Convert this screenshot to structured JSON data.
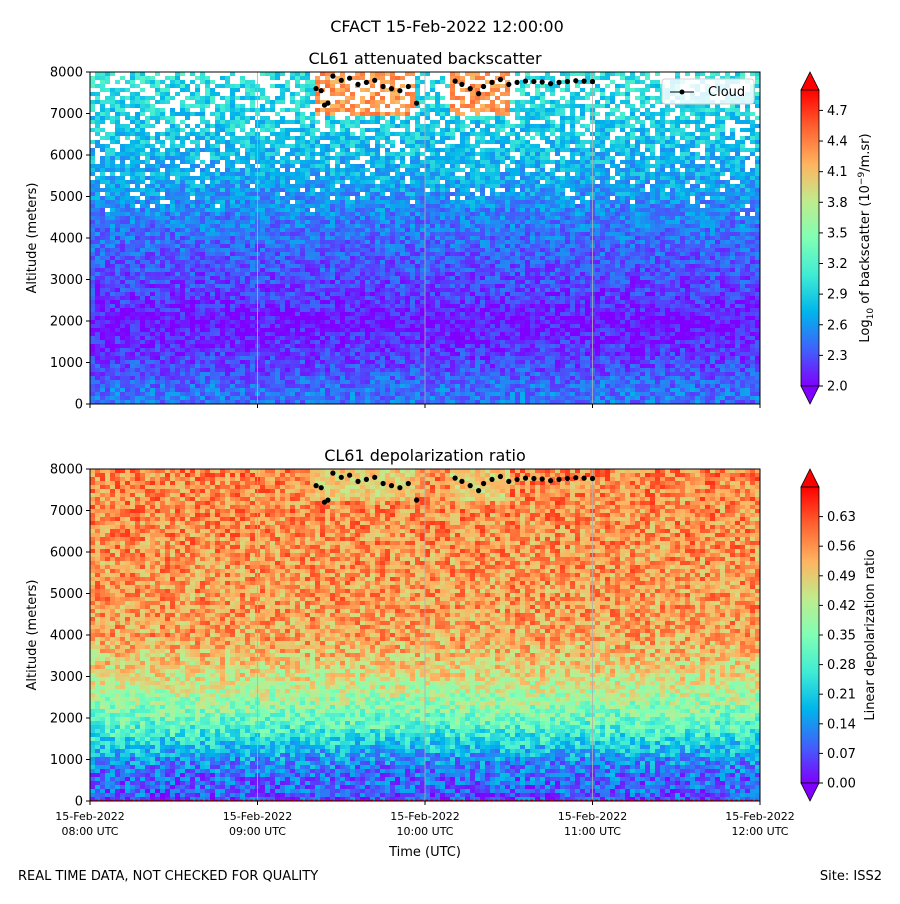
{
  "figure": {
    "suptitle": "CFACT 15-Feb-2022 12:00:00",
    "footer_left": "REAL TIME DATA, NOT CHECKED FOR QUALITY",
    "footer_right": "Site: ISS2"
  },
  "colors": {
    "rainbow": [
      "#8000ff",
      "#4062fa",
      "#00b5eb",
      "#40ecd4",
      "#80ffb4",
      "#c0eb8d",
      "#ffb360",
      "#ff6130",
      "#ff0000"
    ],
    "cloud": "#000000",
    "grid": "#b0b0b0",
    "ground_line": "#ff0000"
  },
  "chart_data": [
    {
      "type": "heatmap",
      "title": "CL61 attenuated backscatter",
      "xlabel": "",
      "ylabel": "Altitude (meters)",
      "ylim": [
        0,
        8000
      ],
      "yticks": [
        "0",
        "1000",
        "2000",
        "3000",
        "4000",
        "5000",
        "6000",
        "7000",
        "8000"
      ],
      "xlim_hours_utc": [
        8,
        12
      ],
      "grid": "vertical only",
      "legend": {
        "position": "top-right",
        "label": "Cloud",
        "marker": "black dot"
      },
      "colorbar": {
        "label_prefix": "Log",
        "label_sub": "10",
        "label_mid": " of backscatter (10",
        "label_sup": "−9",
        "label_suffix": "/m.sr)",
        "range": [
          2.0,
          4.9
        ],
        "ticks": [
          "2.0",
          "2.3",
          "2.6",
          "2.9",
          "3.2",
          "3.5",
          "3.8",
          "4.1",
          "4.4",
          "4.7"
        ],
        "extend": "both"
      },
      "field_profile": [
        {
          "alt": 0,
          "value": 2.45
        },
        {
          "alt": 300,
          "value": 2.45
        },
        {
          "alt": 800,
          "value": 2.3
        },
        {
          "alt": 1500,
          "value": 2.15
        },
        {
          "alt": 2000,
          "value": 2.05
        },
        {
          "alt": 2500,
          "value": 2.2
        },
        {
          "alt": 3500,
          "value": 2.35
        },
        {
          "alt": 4500,
          "value": 2.5
        },
        {
          "alt": 5500,
          "value": 2.7
        },
        {
          "alt": 6500,
          "value": 2.85
        },
        {
          "alt": 8000,
          "value": 3.0
        }
      ],
      "cloud_layer": {
        "hours": [
          [
            9.35,
            9.95
          ],
          [
            10.15,
            10.5
          ]
        ],
        "alt_range": [
          6900,
          8000
        ],
        "value": 4.3
      }
    },
    {
      "type": "heatmap",
      "title": "CL61 depolarization ratio",
      "xlabel": "Time (UTC)",
      "ylabel": "Altitude (meters)",
      "ylim": [
        0,
        8000
      ],
      "yticks": [
        "0",
        "1000",
        "2000",
        "3000",
        "4000",
        "5000",
        "6000",
        "7000",
        "8000"
      ],
      "xlim_hours_utc": [
        8,
        12
      ],
      "xticks": [
        {
          "hour": 8,
          "line1": "15-Feb-2022",
          "line2": "08:00 UTC"
        },
        {
          "hour": 9,
          "line1": "15-Feb-2022",
          "line2": "09:00 UTC"
        },
        {
          "hour": 10,
          "line1": "15-Feb-2022",
          "line2": "10:00 UTC"
        },
        {
          "hour": 11,
          "line1": "15-Feb-2022",
          "line2": "11:00 UTC"
        },
        {
          "hour": 12,
          "line1": "15-Feb-2022",
          "line2": "12:00 UTC"
        }
      ],
      "grid": "vertical only",
      "colorbar": {
        "label": "Linear depolarization ratio",
        "range": [
          0.0,
          0.7
        ],
        "ticks": [
          "0.00",
          "0.07",
          "0.14",
          "0.21",
          "0.28",
          "0.35",
          "0.42",
          "0.49",
          "0.56",
          "0.63"
        ],
        "extend": "both"
      },
      "field_profile": [
        {
          "alt": 0,
          "value": 0.07
        },
        {
          "alt": 200,
          "value": 0.09
        },
        {
          "alt": 600,
          "value": 0.1
        },
        {
          "alt": 1000,
          "value": 0.14
        },
        {
          "alt": 1400,
          "value": 0.22
        },
        {
          "alt": 1800,
          "value": 0.3
        },
        {
          "alt": 2200,
          "value": 0.36
        },
        {
          "alt": 3000,
          "value": 0.46
        },
        {
          "alt": 4000,
          "value": 0.54
        },
        {
          "alt": 8000,
          "value": 0.57
        }
      ],
      "cloud_layer": {
        "hours": [
          [
            9.35,
            9.95
          ],
          [
            10.15,
            10.5
          ]
        ],
        "alt_range": [
          7200,
          8000
        ],
        "value": 0.49
      }
    }
  ],
  "cloud_base_heights": [
    [
      9.35,
      7600
    ],
    [
      9.38,
      7550
    ],
    [
      9.4,
      7200
    ],
    [
      9.42,
      7250
    ],
    [
      9.45,
      7900
    ],
    [
      9.5,
      7800
    ],
    [
      9.55,
      7850
    ],
    [
      9.6,
      7700
    ],
    [
      9.65,
      7750
    ],
    [
      9.7,
      7800
    ],
    [
      9.75,
      7650
    ],
    [
      9.8,
      7600
    ],
    [
      9.85,
      7550
    ],
    [
      9.9,
      7650
    ],
    [
      9.95,
      7250
    ],
    [
      10.18,
      7780
    ],
    [
      10.22,
      7700
    ],
    [
      10.27,
      7600
    ],
    [
      10.32,
      7480
    ],
    [
      10.35,
      7650
    ],
    [
      10.4,
      7750
    ],
    [
      10.45,
      7820
    ],
    [
      10.5,
      7700
    ],
    [
      10.55,
      7750
    ],
    [
      10.6,
      7780
    ],
    [
      10.65,
      7770
    ],
    [
      10.7,
      7760
    ],
    [
      10.75,
      7720
    ],
    [
      10.8,
      7750
    ],
    [
      10.85,
      7770
    ],
    [
      10.9,
      7790
    ],
    [
      10.95,
      7780
    ],
    [
      11.0,
      7770
    ]
  ]
}
